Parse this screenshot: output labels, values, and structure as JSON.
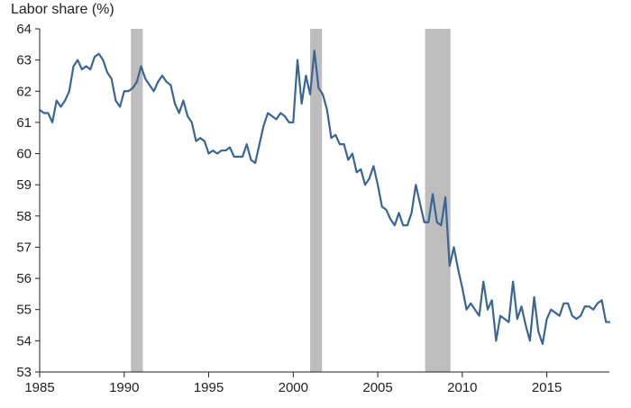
{
  "chart_data": {
    "type": "line",
    "title": "",
    "ylabel": "Labor share (%)",
    "xlabel": "",
    "xlim": [
      1985,
      2018.7
    ],
    "ylim": [
      53,
      64
    ],
    "x_ticks": [
      1985,
      1990,
      1995,
      2000,
      2005,
      2010,
      2015
    ],
    "y_ticks": [
      53,
      54,
      55,
      56,
      57,
      58,
      59,
      60,
      61,
      62,
      63,
      64
    ],
    "grid": false,
    "legend": "none",
    "colors": {
      "line": "#3a6694",
      "recession": "#bdbdbd",
      "axis": "#222222"
    },
    "recessions": [
      {
        "start": 1990.4,
        "end": 1991.1
      },
      {
        "start": 2001.0,
        "end": 2001.7
      },
      {
        "start": 2007.8,
        "end": 2009.3
      }
    ],
    "series": [
      {
        "values": [
          [
            1985.0,
            61.4
          ],
          [
            1985.25,
            61.3
          ],
          [
            1985.5,
            61.3
          ],
          [
            1985.75,
            61.0
          ],
          [
            1986.0,
            61.7
          ],
          [
            1986.25,
            61.5
          ],
          [
            1986.5,
            61.7
          ],
          [
            1986.75,
            62.0
          ],
          [
            1987.0,
            62.8
          ],
          [
            1987.25,
            63.0
          ],
          [
            1987.5,
            62.7
          ],
          [
            1987.75,
            62.8
          ],
          [
            1988.0,
            62.7
          ],
          [
            1988.25,
            63.1
          ],
          [
            1988.5,
            63.2
          ],
          [
            1988.75,
            63.0
          ],
          [
            1989.0,
            62.6
          ],
          [
            1989.25,
            62.4
          ],
          [
            1989.5,
            61.7
          ],
          [
            1989.75,
            61.5
          ],
          [
            1990.0,
            62.0
          ],
          [
            1990.25,
            62.0
          ],
          [
            1990.5,
            62.1
          ],
          [
            1990.75,
            62.3
          ],
          [
            1991.0,
            62.8
          ],
          [
            1991.25,
            62.4
          ],
          [
            1991.5,
            62.2
          ],
          [
            1991.75,
            62.0
          ],
          [
            1992.0,
            62.3
          ],
          [
            1992.25,
            62.5
          ],
          [
            1992.5,
            62.3
          ],
          [
            1992.75,
            62.2
          ],
          [
            1993.0,
            61.6
          ],
          [
            1993.25,
            61.3
          ],
          [
            1993.5,
            61.7
          ],
          [
            1993.75,
            61.2
          ],
          [
            1994.0,
            61.0
          ],
          [
            1994.25,
            60.4
          ],
          [
            1994.5,
            60.5
          ],
          [
            1994.75,
            60.4
          ],
          [
            1995.0,
            60.0
          ],
          [
            1995.25,
            60.1
          ],
          [
            1995.5,
            60.0
          ],
          [
            1995.75,
            60.1
          ],
          [
            1996.0,
            60.1
          ],
          [
            1996.25,
            60.2
          ],
          [
            1996.5,
            59.9
          ],
          [
            1996.75,
            59.9
          ],
          [
            1997.0,
            59.9
          ],
          [
            1997.25,
            60.3
          ],
          [
            1997.5,
            59.8
          ],
          [
            1997.75,
            59.7
          ],
          [
            1998.0,
            60.3
          ],
          [
            1998.25,
            60.9
          ],
          [
            1998.5,
            61.3
          ],
          [
            1998.75,
            61.2
          ],
          [
            1999.0,
            61.1
          ],
          [
            1999.25,
            61.3
          ],
          [
            1999.5,
            61.2
          ],
          [
            1999.75,
            61.0
          ],
          [
            2000.0,
            61.0
          ],
          [
            2000.25,
            63.0
          ],
          [
            2000.5,
            61.6
          ],
          [
            2000.75,
            62.5
          ],
          [
            2001.0,
            61.9
          ],
          [
            2001.25,
            63.3
          ],
          [
            2001.5,
            62.1
          ],
          [
            2001.75,
            61.9
          ],
          [
            2002.0,
            61.4
          ],
          [
            2002.25,
            60.5
          ],
          [
            2002.5,
            60.6
          ],
          [
            2002.75,
            60.3
          ],
          [
            2003.0,
            60.3
          ],
          [
            2003.25,
            59.8
          ],
          [
            2003.5,
            60.0
          ],
          [
            2003.75,
            59.4
          ],
          [
            2004.0,
            59.5
          ],
          [
            2004.25,
            59.0
          ],
          [
            2004.5,
            59.2
          ],
          [
            2004.75,
            59.6
          ],
          [
            2005.0,
            59.0
          ],
          [
            2005.25,
            58.3
          ],
          [
            2005.5,
            58.2
          ],
          [
            2005.75,
            57.9
          ],
          [
            2006.0,
            57.7
          ],
          [
            2006.25,
            58.1
          ],
          [
            2006.5,
            57.7
          ],
          [
            2006.75,
            57.7
          ],
          [
            2007.0,
            58.1
          ],
          [
            2007.25,
            59.0
          ],
          [
            2007.5,
            58.4
          ],
          [
            2007.75,
            57.8
          ],
          [
            2008.0,
            57.8
          ],
          [
            2008.25,
            58.7
          ],
          [
            2008.5,
            57.8
          ],
          [
            2008.75,
            57.7
          ],
          [
            2009.0,
            58.6
          ],
          [
            2009.25,
            56.4
          ],
          [
            2009.5,
            57.0
          ],
          [
            2009.75,
            56.3
          ],
          [
            2010.0,
            55.7
          ],
          [
            2010.25,
            55.0
          ],
          [
            2010.5,
            55.2
          ],
          [
            2010.75,
            55.0
          ],
          [
            2011.0,
            54.8
          ],
          [
            2011.25,
            55.9
          ],
          [
            2011.5,
            55.0
          ],
          [
            2011.75,
            55.3
          ],
          [
            2012.0,
            54.0
          ],
          [
            2012.25,
            54.8
          ],
          [
            2012.5,
            54.7
          ],
          [
            2012.75,
            54.6
          ],
          [
            2013.0,
            55.9
          ],
          [
            2013.25,
            54.7
          ],
          [
            2013.5,
            55.1
          ],
          [
            2013.75,
            54.5
          ],
          [
            2014.0,
            54.0
          ],
          [
            2014.25,
            55.4
          ],
          [
            2014.5,
            54.3
          ],
          [
            2014.75,
            53.9
          ],
          [
            2015.0,
            54.7
          ],
          [
            2015.25,
            55.0
          ],
          [
            2015.5,
            54.9
          ],
          [
            2015.75,
            54.8
          ],
          [
            2016.0,
            55.2
          ],
          [
            2016.25,
            55.2
          ],
          [
            2016.5,
            54.8
          ],
          [
            2016.75,
            54.7
          ],
          [
            2017.0,
            54.8
          ],
          [
            2017.25,
            55.1
          ],
          [
            2017.5,
            55.1
          ],
          [
            2017.75,
            55.0
          ],
          [
            2018.0,
            55.2
          ],
          [
            2018.25,
            55.3
          ],
          [
            2018.5,
            54.6
          ],
          [
            2018.7,
            54.6
          ]
        ]
      }
    ]
  }
}
